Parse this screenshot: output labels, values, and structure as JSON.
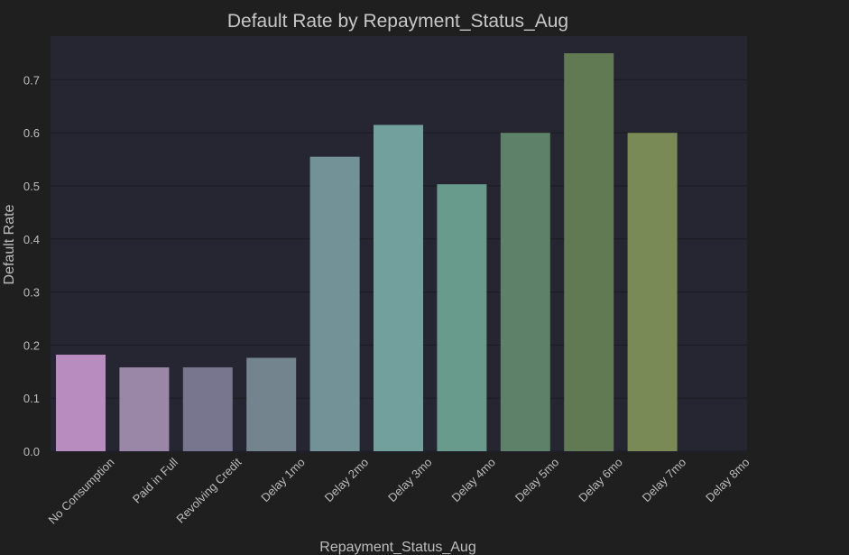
{
  "chart_data": {
    "type": "bar",
    "title": "Default Rate by Repayment_Status_Aug",
    "xlabel": "Repayment_Status_Aug",
    "ylabel": "Default Rate",
    "categories": [
      "No Consumption",
      "Paid in Full",
      "Revolving Credit",
      "Delay 1mo",
      "Delay 2mo",
      "Delay 3mo",
      "Delay 4mo",
      "Delay 5mo",
      "Delay 6mo",
      "Delay 7mo",
      "Delay 8mo"
    ],
    "values": [
      0.182,
      0.158,
      0.158,
      0.176,
      0.555,
      0.615,
      0.503,
      0.6,
      0.75,
      0.6,
      0.0
    ],
    "colors": [
      "#b98cc0",
      "#9a86a7",
      "#77768e",
      "#73848f",
      "#739297",
      "#72a09d",
      "#689b8b",
      "#5e8169",
      "#617a54",
      "#7a8a56",
      "#8a9462"
    ],
    "yticks": [
      "0.0",
      "0.1",
      "0.2",
      "0.3",
      "0.4",
      "0.5",
      "0.6",
      "0.7"
    ],
    "ylim": [
      0,
      0.785
    ],
    "grid": true,
    "legend": "none",
    "background": "#262633",
    "figure_background": "#1f1f20"
  }
}
